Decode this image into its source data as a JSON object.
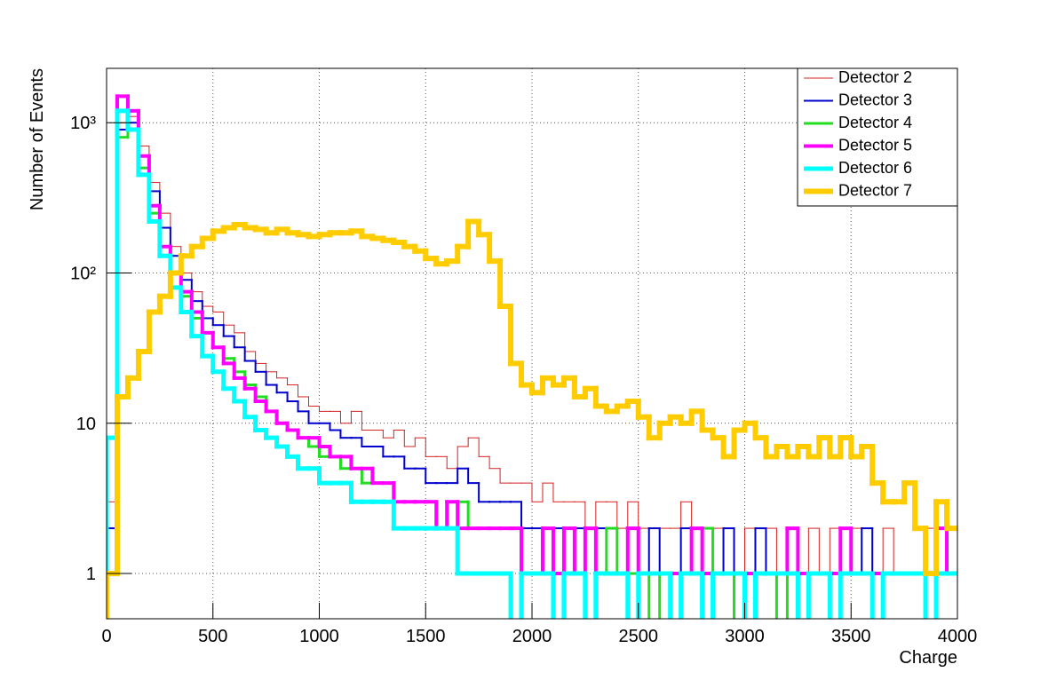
{
  "chart_data": {
    "type": "histogram",
    "x_label": "Charge",
    "y_label": "Number of Events",
    "log_y": true,
    "grid": true,
    "legend": "top-right",
    "xlim": [
      0,
      4000
    ],
    "ylim": [
      0.5,
      2300
    ],
    "xticks": [
      0,
      500,
      1000,
      1500,
      2000,
      2500,
      3000,
      3500,
      4000
    ],
    "yticks": [
      1,
      10,
      {
        "value": 100,
        "label": "10²"
      },
      {
        "value": 1000,
        "label": "10³"
      }
    ],
    "bins": [
      0,
      50,
      100,
      150,
      200,
      250,
      300,
      350,
      400,
      450,
      500,
      550,
      600,
      650,
      700,
      750,
      800,
      850,
      900,
      950,
      1000,
      1050,
      1100,
      1150,
      1200,
      1250,
      1300,
      1350,
      1400,
      1450,
      1500,
      1550,
      1600,
      1650,
      1700,
      1750,
      1800,
      1850,
      1900,
      1950,
      2000,
      2050,
      2100,
      2150,
      2200,
      2250,
      2300,
      2350,
      2400,
      2450,
      2500,
      2550,
      2600,
      2650,
      2700,
      2750,
      2800,
      2850,
      2900,
      2950,
      3000,
      3050,
      3100,
      3150,
      3200,
      3250,
      3300,
      3350,
      3400,
      3450,
      3500,
      3550,
      3600,
      3650,
      3700,
      3750,
      3800,
      3850,
      3900,
      3950,
      4000
    ],
    "series": [
      {
        "name": "Detector 2",
        "color": "#d42020",
        "line_width": 1,
        "values": [
          3,
          1000,
          1100,
          700,
          400,
          250,
          150,
          100,
          75,
          60,
          55,
          45,
          40,
          30,
          25,
          22,
          20,
          18,
          15,
          13,
          12,
          12,
          10,
          12,
          9,
          9,
          8,
          9,
          7,
          8,
          6,
          6,
          5,
          7,
          8,
          6,
          5,
          4,
          4,
          4,
          3,
          4,
          3,
          3,
          3,
          2,
          3,
          3,
          2,
          3,
          2,
          2,
          2,
          2,
          3,
          2,
          2,
          2,
          2,
          1,
          2,
          2,
          2,
          1,
          2,
          1,
          2,
          1,
          2,
          1,
          2,
          1,
          1,
          2,
          1,
          1,
          1,
          2,
          1,
          1
        ]
      },
      {
        "name": "Detector 3",
        "color": "#0000cc",
        "line_width": 2,
        "values": [
          2,
          900,
          1000,
          600,
          350,
          200,
          130,
          90,
          65,
          50,
          45,
          38,
          32,
          26,
          22,
          18,
          16,
          14,
          12,
          10,
          10,
          9,
          8,
          8,
          7,
          7,
          6,
          6,
          5,
          5,
          4,
          4,
          4,
          5,
          4,
          3,
          3,
          3,
          3,
          2,
          2,
          2,
          2,
          2,
          2,
          2,
          2,
          2,
          1,
          2,
          1,
          2,
          1,
          1,
          2,
          1,
          1,
          1,
          2,
          1,
          1,
          2,
          1,
          1,
          1,
          1,
          1,
          1,
          1,
          1,
          1,
          2,
          1,
          1,
          1,
          1,
          1,
          1,
          1,
          2
        ]
      },
      {
        "name": "Detector 4",
        "color": "#22dd22",
        "line_width": 3,
        "values": [
          1,
          800,
          900,
          500,
          250,
          150,
          100,
          70,
          50,
          40,
          32,
          27,
          22,
          18,
          15,
          12,
          10,
          9,
          8,
          7,
          6,
          6,
          5,
          5,
          4,
          4,
          4,
          3,
          3,
          3,
          3,
          2,
          2,
          3,
          2,
          2,
          2,
          2,
          2,
          1,
          1,
          2,
          1,
          1,
          1,
          0,
          1,
          2,
          1,
          1,
          1,
          0,
          1,
          1,
          1,
          1,
          2,
          1,
          1,
          0,
          1,
          1,
          1,
          0,
          1,
          1,
          1,
          1,
          0,
          1,
          1,
          1,
          0,
          1,
          1,
          1,
          1,
          0,
          1,
          1
        ]
      },
      {
        "name": "Detector 5",
        "color": "#ff00ff",
        "line_width": 4,
        "values": [
          1,
          1500,
          1200,
          600,
          280,
          150,
          100,
          75,
          55,
          40,
          32,
          25,
          20,
          17,
          14,
          12,
          10,
          9,
          8,
          8,
          7,
          6,
          6,
          5,
          5,
          4,
          4,
          3,
          3,
          3,
          3,
          2,
          3,
          2,
          2,
          2,
          2,
          2,
          2,
          1,
          1,
          2,
          1,
          2,
          1,
          2,
          1,
          1,
          1,
          2,
          1,
          1,
          1,
          1,
          1,
          2,
          1,
          1,
          1,
          1,
          1,
          1,
          1,
          1,
          2,
          1,
          1,
          1,
          1,
          2,
          1,
          1,
          1,
          1,
          1,
          1,
          1,
          1,
          2,
          1
        ]
      },
      {
        "name": "Detector 6",
        "color": "#00ffff",
        "line_width": 5,
        "values": [
          8,
          1200,
          900,
          450,
          220,
          130,
          80,
          55,
          38,
          28,
          22,
          17,
          14,
          11,
          9,
          8,
          7,
          6,
          5,
          5,
          4,
          4,
          4,
          3,
          3,
          3,
          3,
          2,
          2,
          2,
          2,
          2,
          2,
          1,
          1,
          1,
          1,
          1,
          0,
          1,
          1,
          1,
          0,
          1,
          1,
          0,
          1,
          1,
          1,
          0,
          1,
          1,
          1,
          0,
          1,
          1,
          0,
          1,
          1,
          1,
          0,
          1,
          1,
          1,
          1,
          0,
          1,
          1,
          0,
          1,
          1,
          1,
          0,
          1,
          1,
          1,
          1,
          0,
          1,
          1
        ]
      },
      {
        "name": "Detector 7",
        "color": "#ffcc00",
        "line_width": 6,
        "values": [
          1,
          15,
          20,
          30,
          55,
          70,
          100,
          130,
          150,
          170,
          190,
          200,
          210,
          200,
          195,
          185,
          195,
          185,
          180,
          175,
          180,
          185,
          185,
          190,
          175,
          170,
          165,
          160,
          150,
          140,
          125,
          115,
          120,
          150,
          220,
          180,
          120,
          60,
          25,
          18,
          16,
          20,
          18,
          20,
          15,
          17,
          13,
          12,
          13,
          14,
          11,
          8,
          10,
          11,
          10,
          12,
          9,
          8,
          6,
          9,
          10,
          8,
          6,
          7,
          6,
          7,
          6,
          8,
          6,
          8,
          6,
          7,
          4,
          3,
          3,
          4,
          2,
          1,
          3,
          2
        ]
      }
    ]
  }
}
